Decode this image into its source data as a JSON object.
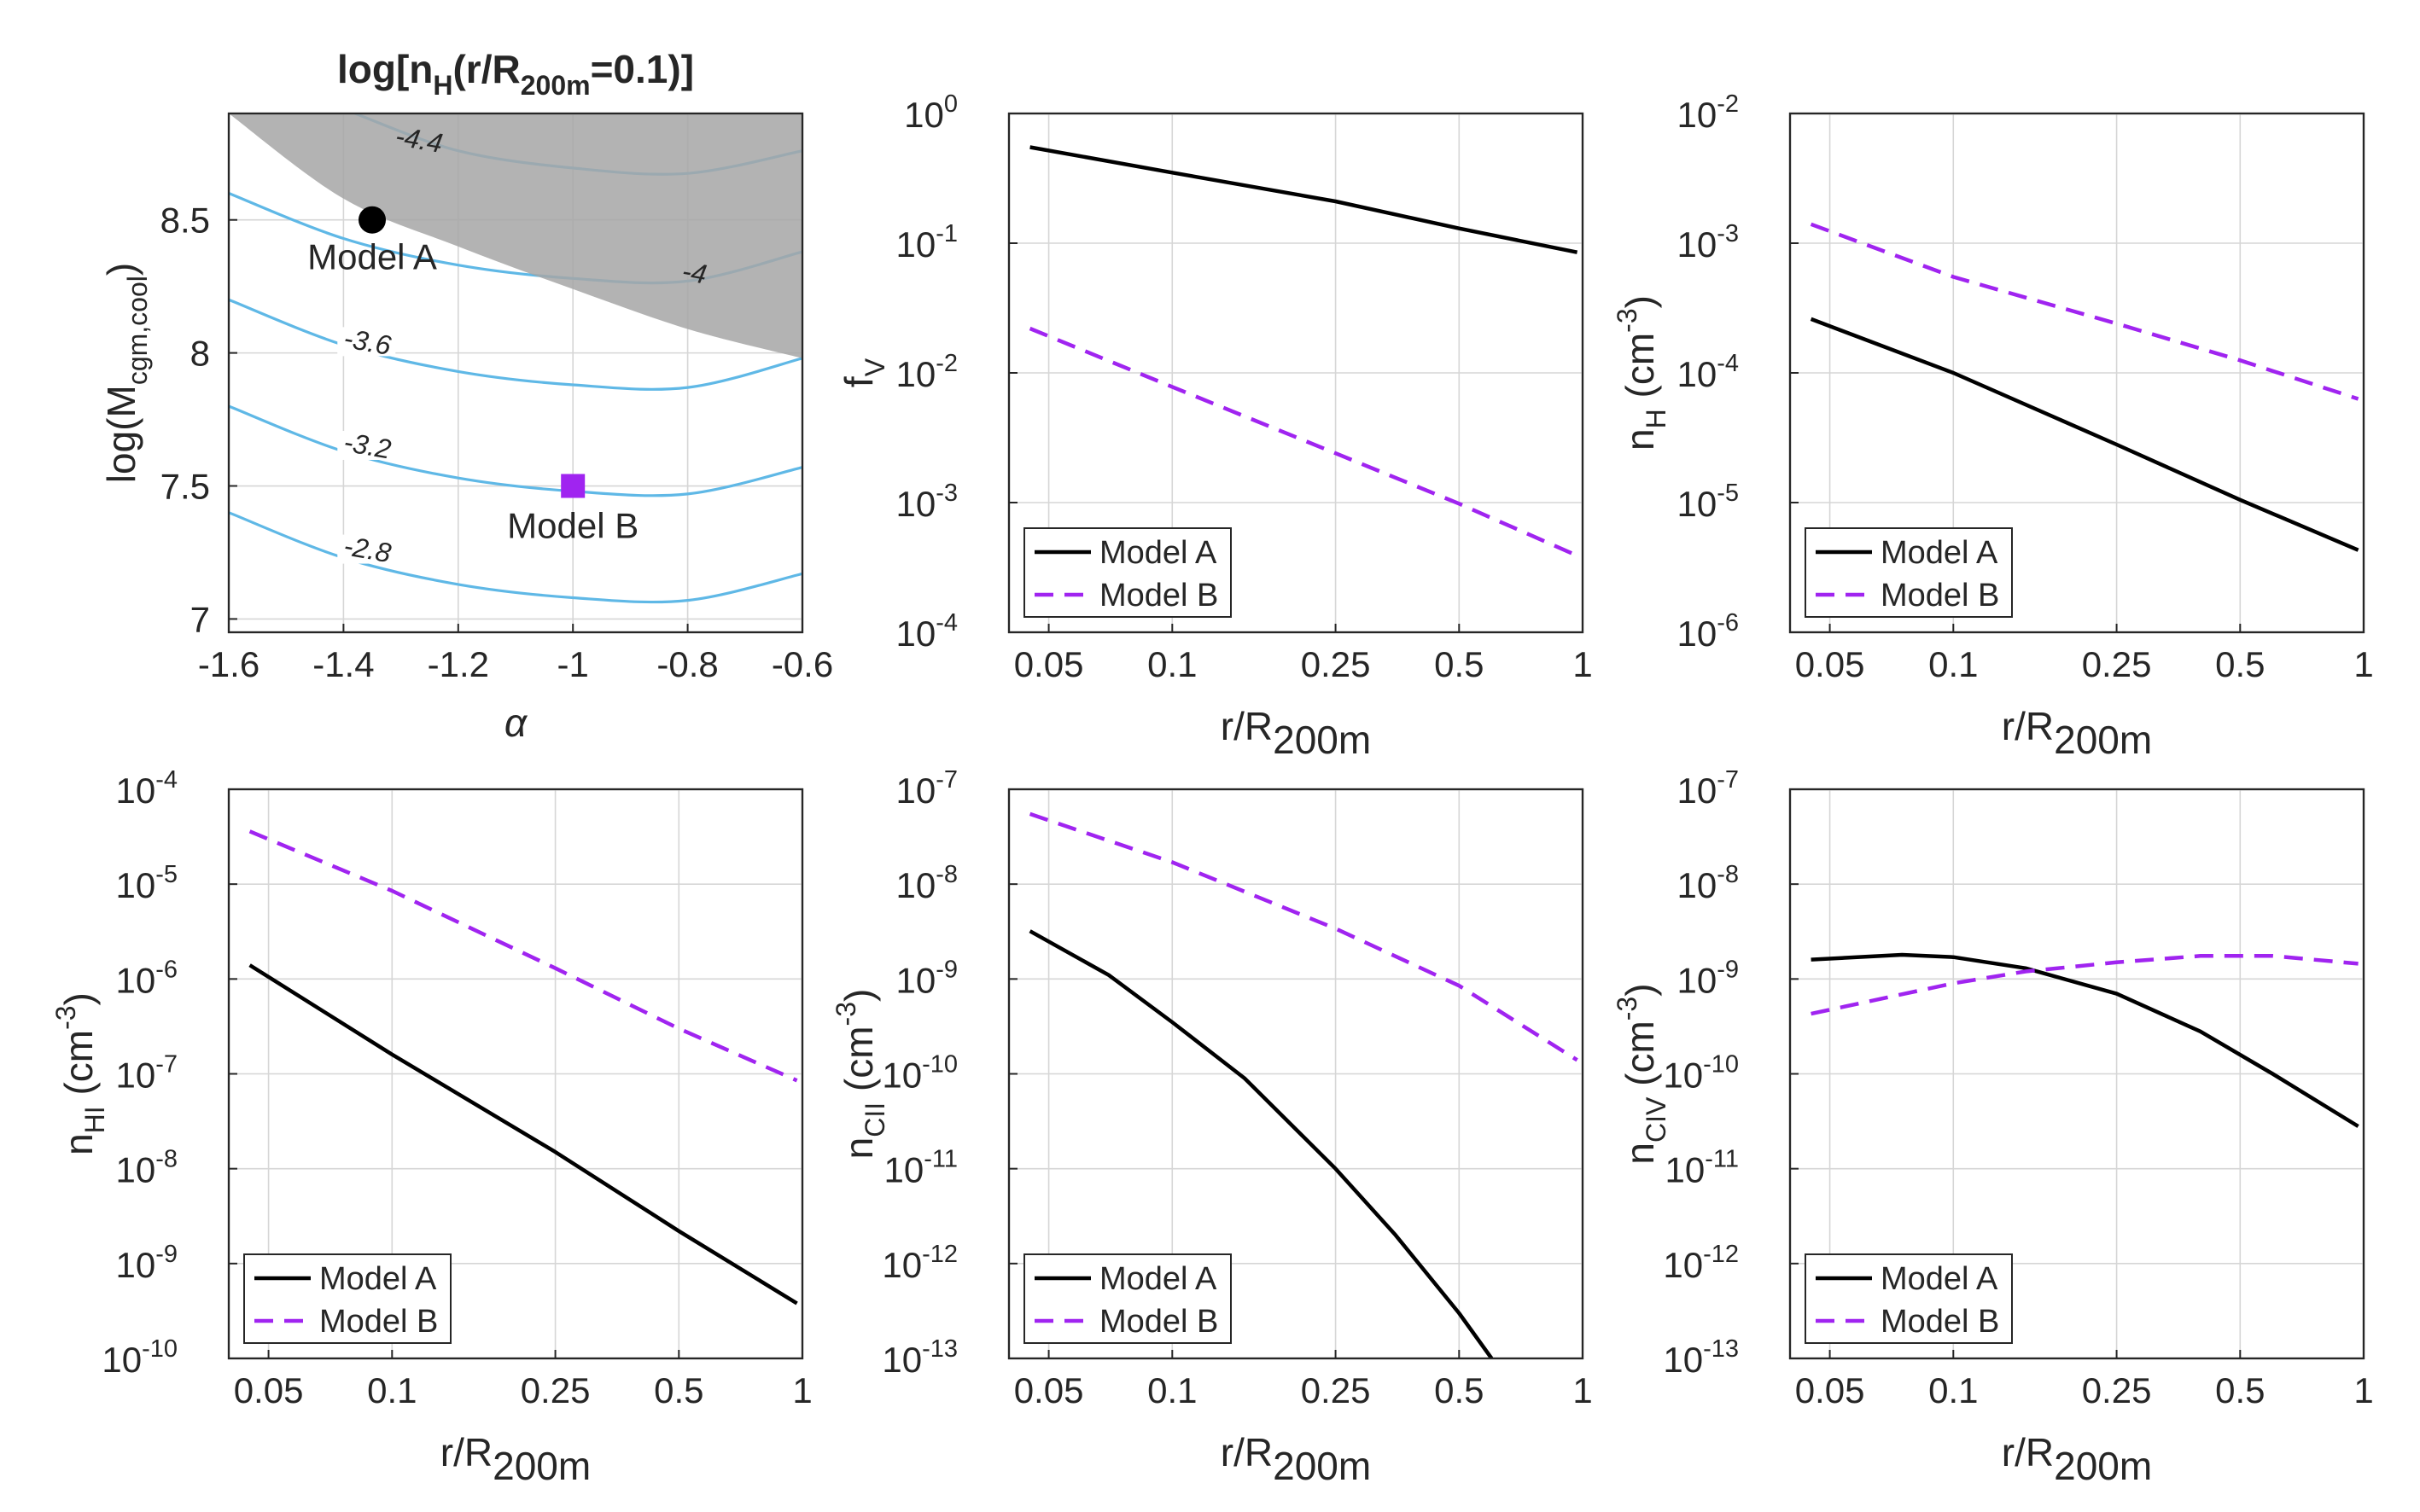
{
  "chart_data": [
    {
      "id": "panel-alpha-mass",
      "type": "contour",
      "title": "log[n_H(r/R_200m=0.1)]",
      "title_parts": {
        "main1": "log[n",
        "sub1": "H",
        "main2": "(r/R",
        "sub2": "200m",
        "main3": "=0.1)]"
      },
      "xlabel": "α",
      "ylabel": {
        "main": "log(M",
        "sub": "cgm,cool",
        "end": ")"
      },
      "xlim": [
        -1.6,
        -0.6
      ],
      "ylim": [
        6.95,
        8.9
      ],
      "xticks": [
        -1.6,
        -1.4,
        -1.2,
        -1.0,
        -0.8,
        -0.6
      ],
      "xtick_labels": [
        "-1.6",
        "-1.4",
        "-1.2",
        "-1",
        "-0.8",
        "-0.6"
      ],
      "yticks": [
        7.0,
        7.5,
        8.0,
        8.5
      ],
      "ytick_labels": [
        "7",
        "7.5",
        "8",
        "8.5"
      ],
      "grid": true,
      "colors": {
        "contour": "#5fb8e6",
        "shade": "#a6a6a6",
        "model_a": "#000000",
        "model_b": "#a024f0"
      },
      "shaded_region": {
        "boundary": [
          [
            -1.6,
            8.9
          ],
          [
            -1.4,
            8.58
          ],
          [
            -1.2,
            8.4
          ],
          [
            -1.0,
            8.24
          ],
          [
            -0.8,
            8.09
          ],
          [
            -0.6,
            7.98
          ]
        ]
      },
      "contours": [
        {
          "level": "-4.4",
          "label_at": [
            -1.27,
            8.78
          ],
          "points": [
            [
              -1.38,
              8.9
            ],
            [
              -1.2,
              8.76
            ],
            [
              -1.0,
              8.695
            ],
            [
              -0.8,
              8.675
            ],
            [
              -0.6,
              8.76
            ]
          ]
        },
        {
          "level": "-4",
          "label_at": [
            -0.79,
            8.28
          ],
          "points": [
            [
              -1.6,
              8.6
            ],
            [
              -1.4,
              8.43
            ],
            [
              -1.2,
              8.33
            ],
            [
              -1.0,
              8.28
            ],
            [
              -0.8,
              8.27
            ],
            [
              -0.6,
              8.38
            ]
          ]
        },
        {
          "level": "-3.6",
          "label_at": [
            -1.36,
            8.02
          ],
          "points": [
            [
              -1.6,
              8.2
            ],
            [
              -1.4,
              8.03
            ],
            [
              -1.2,
              7.93
            ],
            [
              -1.0,
              7.88
            ],
            [
              -0.8,
              7.87
            ],
            [
              -0.6,
              7.98
            ]
          ]
        },
        {
          "level": "-3.2",
          "label_at": [
            -1.36,
            7.63
          ],
          "points": [
            [
              -1.6,
              7.8
            ],
            [
              -1.4,
              7.63
            ],
            [
              -1.2,
              7.53
            ],
            [
              -1.0,
              7.48
            ],
            [
              -0.8,
              7.47
            ],
            [
              -0.6,
              7.57
            ]
          ]
        },
        {
          "level": "-2.8",
          "label_at": [
            -1.36,
            7.24
          ],
          "points": [
            [
              -1.6,
              7.4
            ],
            [
              -1.4,
              7.23
            ],
            [
              -1.2,
              7.13
            ],
            [
              -1.0,
              7.08
            ],
            [
              -0.8,
              7.07
            ],
            [
              -0.6,
              7.17
            ]
          ]
        }
      ],
      "markers": [
        {
          "name": "Model A",
          "x": -1.35,
          "y": 8.5,
          "shape": "circle",
          "color": "#000000",
          "label_at": [
            -1.35,
            8.36
          ]
        },
        {
          "name": "Model B",
          "x": -1.0,
          "y": 7.5,
          "shape": "square",
          "color": "#a024f0",
          "label_at": [
            -1.0,
            7.35
          ]
        }
      ]
    },
    {
      "id": "panel-fv",
      "type": "line",
      "xscale": "log",
      "yscale": "log",
      "xlim": [
        0.04,
        1.0
      ],
      "ylim": [
        0.0001,
        1.0
      ],
      "xticks": [
        0.05,
        0.1,
        0.25,
        0.5,
        1.0
      ],
      "xtick_labels": [
        "0.05",
        "0.1",
        "0.25",
        "0.5",
        "1"
      ],
      "ytick_exponents": [
        -4,
        -3,
        -2,
        -1,
        0
      ],
      "xlabel": {
        "main": "r/R",
        "sub": "200m"
      },
      "ylabel": {
        "main": "f",
        "sub": "V"
      },
      "legend": "bottom-left",
      "grid": true,
      "series": [
        {
          "name": "Model A",
          "style": "solid",
          "color": "#000000",
          "x": [
            0.045,
            0.1,
            0.25,
            0.5,
            0.97
          ],
          "y": [
            0.55,
            0.35,
            0.21,
            0.13,
            0.085
          ]
        },
        {
          "name": "Model B",
          "style": "dashed",
          "color": "#a024f0",
          "x": [
            0.045,
            0.1,
            0.25,
            0.5,
            0.97
          ],
          "y": [
            0.022,
            0.0078,
            0.0024,
            0.00098,
            0.00039
          ]
        }
      ]
    },
    {
      "id": "panel-nh",
      "type": "line",
      "xscale": "log",
      "yscale": "log",
      "xlim": [
        0.04,
        1.0
      ],
      "ylim": [
        1e-06,
        0.01
      ],
      "xticks": [
        0.05,
        0.1,
        0.25,
        0.5,
        1.0
      ],
      "xtick_labels": [
        "0.05",
        "0.1",
        "0.25",
        "0.5",
        "1"
      ],
      "ytick_exponents": [
        -6,
        -5,
        -4,
        -3,
        -2
      ],
      "xlabel": {
        "main": "r/R",
        "sub": "200m"
      },
      "ylabel": {
        "main": "n",
        "sub": "H",
        "unit": " (cm",
        "sup": "-3",
        "end": ")"
      },
      "legend": "bottom-left",
      "grid": true,
      "series": [
        {
          "name": "Model A",
          "style": "solid",
          "color": "#000000",
          "x": [
            0.045,
            0.1,
            0.25,
            0.5,
            0.97
          ],
          "y": [
            0.00026,
            0.0001,
            2.8e-05,
            1.05e-05,
            4.3e-06
          ]
        },
        {
          "name": "Model B",
          "style": "dashed",
          "color": "#a024f0",
          "x": [
            0.045,
            0.1,
            0.25,
            0.5,
            0.97
          ],
          "y": [
            0.0014,
            0.00055,
            0.00024,
            0.000125,
            6.3e-05
          ]
        }
      ]
    },
    {
      "id": "panel-nhi",
      "type": "line",
      "xscale": "log",
      "yscale": "log",
      "xlim": [
        0.04,
        1.0
      ],
      "ylim": [
        1e-10,
        0.0001
      ],
      "xticks": [
        0.05,
        0.1,
        0.25,
        0.5,
        1.0
      ],
      "xtick_labels": [
        "0.05",
        "0.1",
        "0.25",
        "0.5",
        "1"
      ],
      "ytick_exponents": [
        -10,
        -9,
        -8,
        -7,
        -6,
        -5,
        -4
      ],
      "xlabel": {
        "main": "r/R",
        "sub": "200m"
      },
      "ylabel": {
        "main": "n",
        "sub": "HI",
        "unit": " (cm",
        "sup": "-3",
        "end": ")"
      },
      "legend": "bottom-left",
      "grid": true,
      "series": [
        {
          "name": "Model A",
          "style": "solid",
          "color": "#000000",
          "x": [
            0.045,
            0.1,
            0.25,
            0.5,
            0.97
          ],
          "y": [
            1.4e-06,
            1.6e-07,
            1.5e-08,
            2.2e-09,
            3.8e-10
          ]
        },
        {
          "name": "Model B",
          "style": "dashed",
          "color": "#a024f0",
          "x": [
            0.045,
            0.1,
            0.25,
            0.5,
            0.97
          ],
          "y": [
            3.6e-05,
            8.5e-06,
            1.3e-06,
            3e-07,
            8.5e-08
          ]
        }
      ]
    },
    {
      "id": "panel-ncii",
      "type": "line",
      "xscale": "log",
      "yscale": "log",
      "xlim": [
        0.04,
        1.0
      ],
      "ylim": [
        1e-13,
        1e-07
      ],
      "xticks": [
        0.05,
        0.1,
        0.25,
        0.5,
        1.0
      ],
      "xtick_labels": [
        "0.05",
        "0.1",
        "0.25",
        "0.5",
        "1"
      ],
      "ytick_exponents": [
        -13,
        -12,
        -11,
        -10,
        -9,
        -8,
        -7
      ],
      "xlabel": {
        "main": "r/R",
        "sub": "200m"
      },
      "ylabel": {
        "main": "n",
        "sub": "CII",
        "unit": " (cm",
        "sup": "-3",
        "end": ")"
      },
      "legend": "bottom-left",
      "grid": true,
      "series": [
        {
          "name": "Model A",
          "style": "solid",
          "color": "#000000",
          "x": [
            0.045,
            0.07,
            0.1,
            0.15,
            0.25,
            0.35,
            0.5,
            0.6
          ],
          "y": [
            3.2e-09,
            1.1e-09,
            3.5e-10,
            9e-11,
            1e-11,
            2e-12,
            3e-13,
            1e-13
          ]
        },
        {
          "name": "Model B",
          "style": "dashed",
          "color": "#a024f0",
          "x": [
            0.045,
            0.1,
            0.25,
            0.5,
            0.97
          ],
          "y": [
            5.5e-08,
            1.7e-08,
            3.4e-09,
            8.5e-10,
            1.4e-10
          ]
        }
      ]
    },
    {
      "id": "panel-nciv",
      "type": "line",
      "xscale": "log",
      "yscale": "log",
      "xlim": [
        0.04,
        1.0
      ],
      "ylim": [
        1e-13,
        1e-07
      ],
      "xticks": [
        0.05,
        0.1,
        0.25,
        0.5,
        1.0
      ],
      "xtick_labels": [
        "0.05",
        "0.1",
        "0.25",
        "0.5",
        "1"
      ],
      "ytick_exponents": [
        -13,
        -12,
        -11,
        -10,
        -9,
        -8,
        -7
      ],
      "xlabel": {
        "main": "r/R",
        "sub": "200m"
      },
      "ylabel": {
        "main": "n",
        "sub": "CIV",
        "unit": " (cm",
        "sup": "-3",
        "end": ")"
      },
      "legend": "bottom-left",
      "grid": true,
      "series": [
        {
          "name": "Model A",
          "style": "solid",
          "color": "#000000",
          "x": [
            0.045,
            0.075,
            0.1,
            0.15,
            0.25,
            0.4,
            0.6,
            0.97
          ],
          "y": [
            1.6e-09,
            1.8e-09,
            1.7e-09,
            1.3e-09,
            7e-10,
            2.8e-10,
            1e-10,
            2.8e-11
          ]
        },
        {
          "name": "Model B",
          "style": "dashed",
          "color": "#a024f0",
          "x": [
            0.045,
            0.1,
            0.15,
            0.25,
            0.4,
            0.6,
            0.97
          ],
          "y": [
            4.3e-10,
            9e-10,
            1.2e-09,
            1.5e-09,
            1.75e-09,
            1.75e-09,
            1.45e-09
          ]
        }
      ]
    }
  ]
}
